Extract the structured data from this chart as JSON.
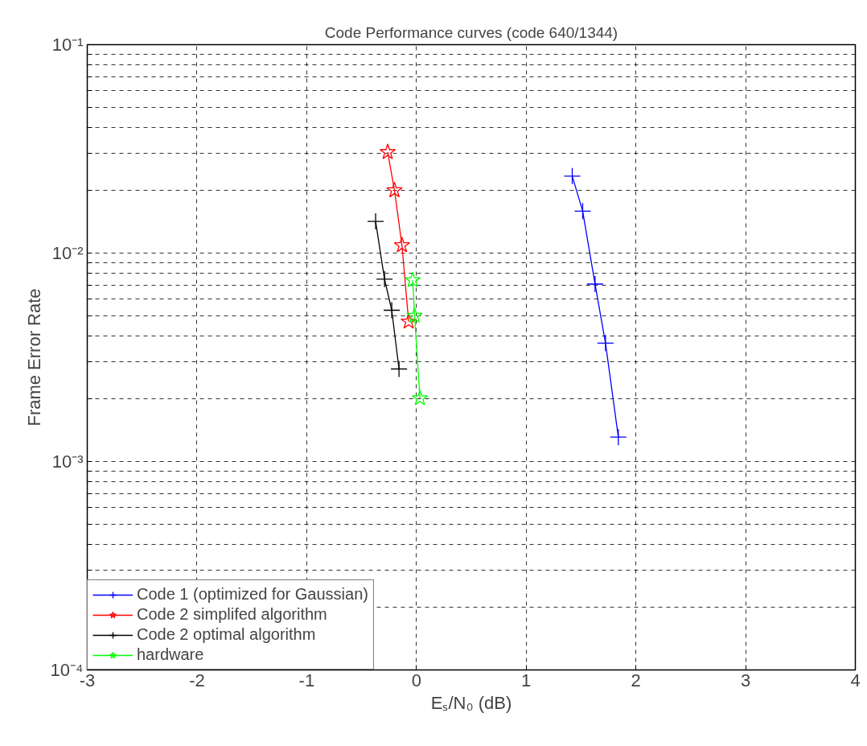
{
  "chart_data": {
    "type": "line",
    "title": "Code Performance curves (code 640/1344)",
    "xlabel": "Eₛ/N₀ (dB)",
    "ylabel": "Frame Error Rate",
    "log": "y",
    "grid": true,
    "legend": "bottom left",
    "line_style": "solid",
    "xlim": [
      -3,
      4
    ],
    "xticks": [
      -3,
      -2,
      -1,
      0,
      1,
      2,
      3,
      4
    ],
    "ylim": [
      0.0001,
      0.1
    ],
    "yticks": [
      {
        "value": 0.0001,
        "label": "10⁻⁴"
      },
      {
        "value": 0.0002,
        "label": null
      },
      {
        "value": 0.0003,
        "label": null
      },
      {
        "value": 0.0004,
        "label": null
      },
      {
        "value": 0.0005,
        "label": null
      },
      {
        "value": 0.0006,
        "label": null
      },
      {
        "value": 0.0007,
        "label": null
      },
      {
        "value": 0.0008,
        "label": null
      },
      {
        "value": 0.0009,
        "label": null
      },
      {
        "value": 0.001,
        "label": "10⁻³"
      },
      {
        "value": 0.002,
        "label": null
      },
      {
        "value": 0.003,
        "label": null
      },
      {
        "value": 0.004,
        "label": null
      },
      {
        "value": 0.005,
        "label": null
      },
      {
        "value": 0.006,
        "label": null
      },
      {
        "value": 0.007,
        "label": null
      },
      {
        "value": 0.008,
        "label": null
      },
      {
        "value": 0.009,
        "label": null
      },
      {
        "value": 0.01,
        "label": "10⁻²"
      },
      {
        "value": 0.02,
        "label": null
      },
      {
        "value": 0.03,
        "label": null
      },
      {
        "value": 0.04,
        "label": null
      },
      {
        "value": 0.05,
        "label": null
      },
      {
        "value": 0.06,
        "label": null
      },
      {
        "value": 0.07,
        "label": null
      },
      {
        "value": 0.08,
        "label": null
      },
      {
        "value": 0.09,
        "label": null
      },
      {
        "value": 0.1,
        "label": "10⁻¹"
      }
    ],
    "series": [
      {
        "name": "Code 1 (optimized for Gaussian)",
        "color": "#0000ff",
        "marker": "cross",
        "x": [
          1.42,
          1.515,
          1.628,
          1.723,
          1.84
        ],
        "values": [
          0.0234,
          0.0159,
          0.0071,
          0.0037,
          0.00131
        ]
      },
      {
        "name": "Code 2 simplifed algorithm",
        "color": "#ff0000",
        "marker": "star",
        "x": [
          -0.262,
          -0.2,
          -0.132,
          -0.071
        ],
        "values": [
          0.0305,
          0.02,
          0.0109,
          0.00469
        ]
      },
      {
        "name": "Code 2 optimal algorithm",
        "color": "#000000",
        "marker": "cross",
        "x": [
          -0.372,
          -0.291,
          -0.225,
          -0.159
        ],
        "values": [
          0.0142,
          0.0075,
          0.00532,
          0.00278
        ]
      },
      {
        "name": "hardware",
        "color": "#00ff00",
        "marker": "star",
        "x": [
          -0.034,
          -0.017,
          0.032
        ],
        "values": [
          0.00741,
          0.005,
          0.00201
        ]
      }
    ]
  }
}
